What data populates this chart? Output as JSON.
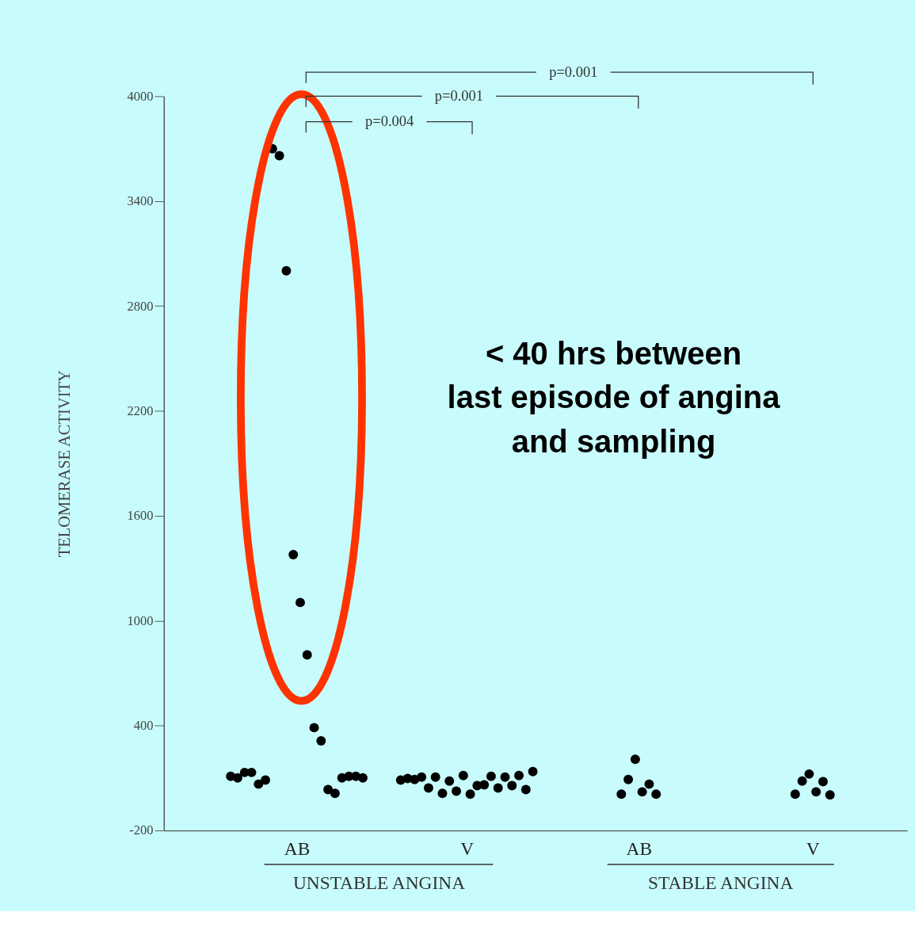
{
  "chart_data": [
    {
      "type": "scatter",
      "categories": [
        "AB",
        "V"
      ],
      "xlabel": "UNSTABLE ANGINA",
      "ylabel": "TELOMERASE ACTIVITY",
      "ylim": [
        -200,
        4000
      ],
      "yticks": [
        -200,
        400,
        1000,
        1600,
        2200,
        2800,
        3400,
        4000
      ],
      "grid": false,
      "marker": "circle",
      "series": [
        {
          "color": "#000000",
          "x": [
            "AB",
            "AB",
            "AB",
            "AB",
            "AB",
            "AB",
            "AB",
            "AB",
            "AB",
            "AB",
            "AB",
            "AB",
            "AB",
            "AB",
            "AB",
            "AB",
            "AB",
            "AB",
            "AB",
            "AB"
          ],
          "values": [
            110,
            101,
            132,
            132,
            65,
            88,
            3699,
            3660,
            3001,
            1378,
            1104,
            804,
            388,
            313,
            34,
            12,
            101,
            110,
            110,
            101
          ]
        },
        {
          "color": "#000000",
          "x": [
            "V",
            "V",
            "V",
            "V",
            "V",
            "V",
            "V",
            "V",
            "V",
            "V",
            "V",
            "V",
            "V",
            "V",
            "V",
            "V",
            "V",
            "V",
            "V",
            "V"
          ],
          "values": [
            88,
            97,
            92,
            105,
            43,
            105,
            12,
            83,
            25,
            114,
            8,
            57,
            61,
            110,
            43,
            105,
            57,
            114,
            34,
            137
          ]
        }
      ],
      "annotations": [
        "p=0.004",
        "p=0.001",
        "p=0.001",
        "< 40 hrs between\nlast episode of angina\nand sampling"
      ]
    },
    {
      "type": "scatter",
      "categories": [
        "AB",
        "V"
      ],
      "xlabel": "STABLE ANGINA",
      "ylim": [
        -200,
        4000
      ],
      "tick_labels": "x",
      "grid": false,
      "marker": "circle",
      "series": [
        {
          "color": "#000000",
          "x": [
            "AB",
            "AB",
            "AB",
            "AB",
            "AB",
            "AB"
          ],
          "values": [
            8,
            92,
            207,
            21,
            65,
            8
          ]
        },
        {
          "color": "#000000",
          "x": [
            "V",
            "V",
            "V",
            "V",
            "V",
            "V"
          ],
          "values": [
            8,
            83,
            123,
            21,
            79,
            3
          ]
        }
      ]
    }
  ]
}
